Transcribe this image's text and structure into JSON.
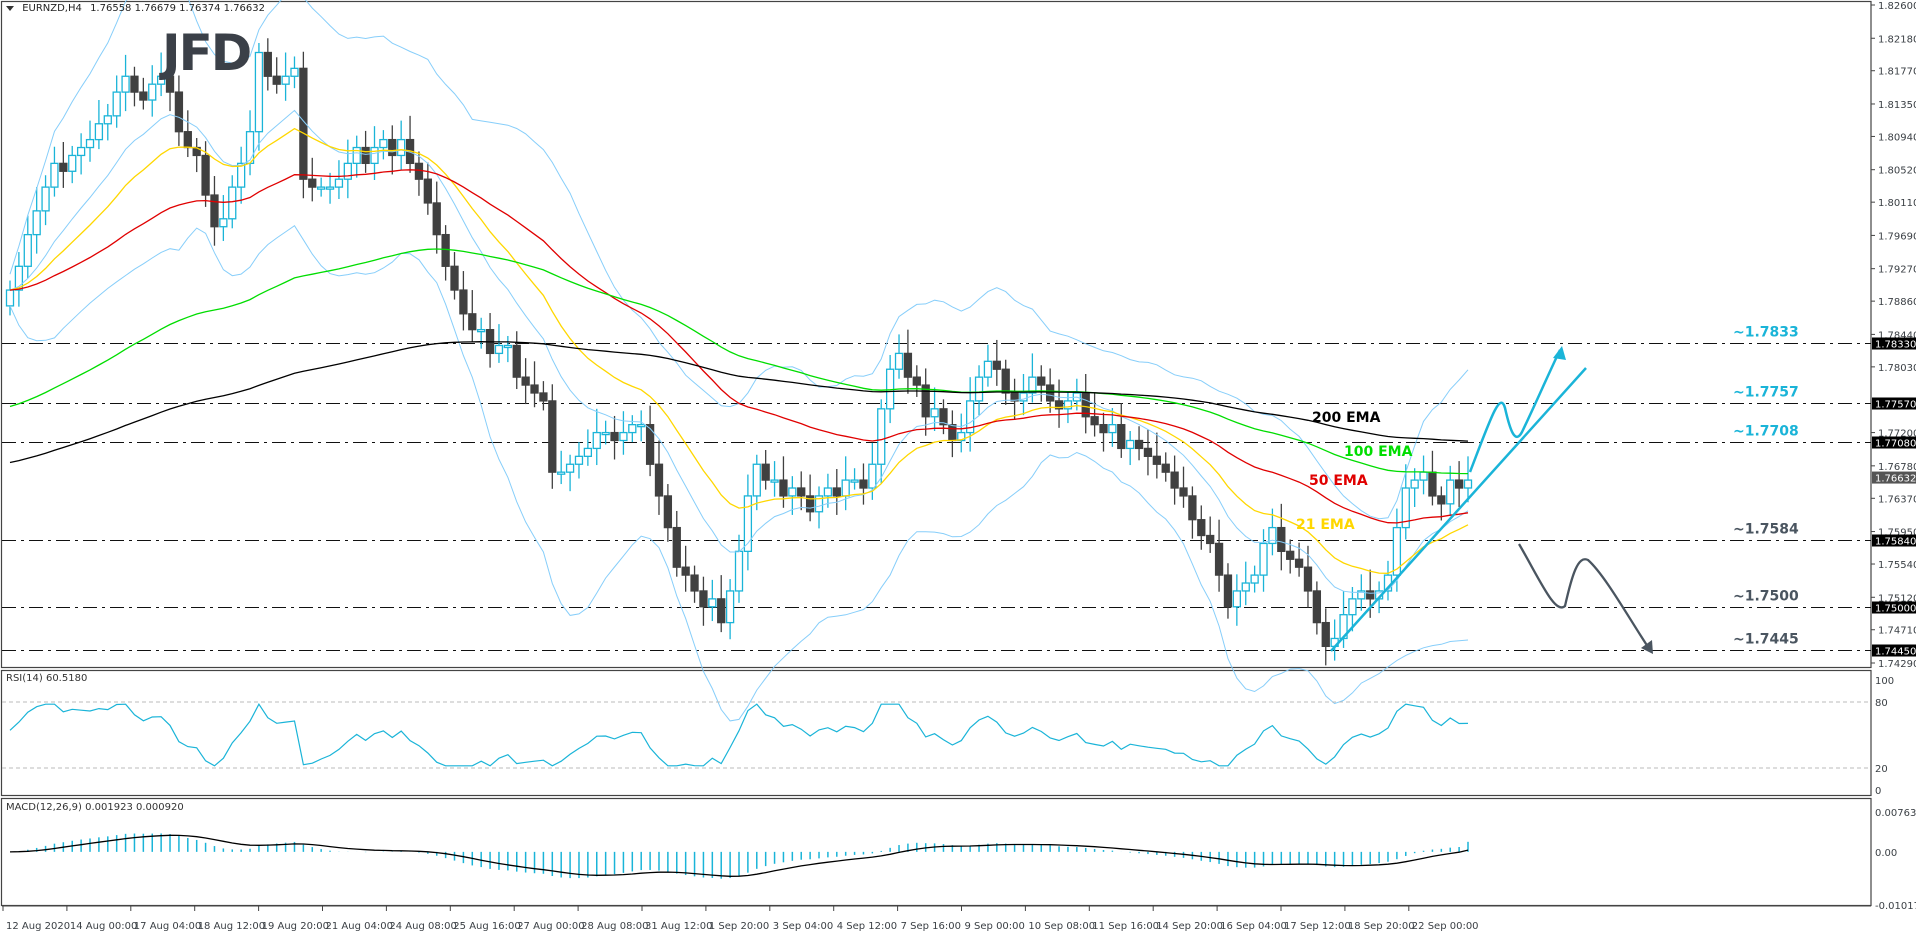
{
  "header": {
    "symbol": "EURNZD,H4",
    "ohlc": "1.76558 1.76679 1.76374 1.76632"
  },
  "logo": {
    "text": "JFD"
  },
  "panels": {
    "rsi": {
      "label": "RSI(14) 60.5180"
    },
    "macd": {
      "label": "MACD(12,26,9) 0.001923 0.000920"
    }
  },
  "colors": {
    "bull_candle": "#1ab4d8",
    "bear_candle": "#404040",
    "ema21": "#ffd700",
    "ema50": "#e00000",
    "ema100": "#00dd00",
    "ema200": "#000000",
    "bollinger": "#87cefa",
    "rsi_line": "#1ab4d8",
    "macd_hist": "#1ab4d8",
    "macd_signal": "#000000",
    "level_label_upper": "#1ab4d8",
    "level_label_lower": "#4a5560",
    "arrow_up": "#1ab4d8",
    "arrow_down": "#4a5560"
  },
  "chart_data": {
    "type": "candlestick",
    "title": "EURNZD,H4 1.76558 1.76679 1.76374 1.76632",
    "price_axis": {
      "ticks": [
        "1.82600",
        "1.82180",
        "1.81770",
        "1.81350",
        "1.80940",
        "1.80520",
        "1.80110",
        "1.79690",
        "1.79270",
        "1.78860",
        "1.78440",
        "1.78030",
        "1.77200",
        "1.76780",
        "1.76370",
        "1.75950",
        "1.75540",
        "1.75120",
        "1.74710",
        "1.74290"
      ],
      "range": [
        1.7429,
        1.826
      ],
      "current_price": "1.76632"
    },
    "time_axis": {
      "ticks": [
        "12 Aug 2020",
        "14 Aug 00:00",
        "17 Aug 04:00",
        "18 Aug 12:00",
        "19 Aug 20:00",
        "21 Aug 04:00",
        "24 Aug 08:00",
        "25 Aug 16:00",
        "27 Aug 00:00",
        "28 Aug 08:00",
        "31 Aug 12:00",
        "1 Sep 20:00",
        "3 Sep 04:00",
        "4 Sep 12:00",
        "7 Sep 16:00",
        "9 Sep 00:00",
        "10 Sep 08:00",
        "11 Sep 16:00",
        "14 Sep 20:00",
        "16 Sep 04:00",
        "17 Sep 12:00",
        "18 Sep 20:00",
        "22 Sep 00:00"
      ]
    },
    "horizontal_levels": [
      {
        "axis_label": "1.78330",
        "annotation": "~1.7833",
        "color": "#1ab4d8"
      },
      {
        "axis_label": "1.77570",
        "annotation": "~1.7757",
        "color": "#1ab4d8"
      },
      {
        "axis_label": "1.77080",
        "annotation": "~1.7708",
        "color": "#1ab4d8"
      },
      {
        "axis_label": "1.75840",
        "annotation": "~1.7584",
        "color": "#4a5560"
      },
      {
        "axis_label": "1.75000",
        "annotation": "~1.7500",
        "color": "#4a5560"
      },
      {
        "axis_label": "1.74450",
        "annotation": "~1.7445",
        "color": "#4a5560"
      }
    ],
    "moving_average_labels": [
      {
        "text": "200 EMA",
        "color": "#000000"
      },
      {
        "text": "100 EMA",
        "color": "#00dd00"
      },
      {
        "text": "50 EMA",
        "color": "#e00000"
      },
      {
        "text": "21 EMA",
        "color": "#ffd700"
      }
    ],
    "candles_close_approx": [
      1.79,
      1.793,
      1.797,
      1.8,
      1.803,
      1.806,
      1.805,
      1.807,
      1.808,
      1.809,
      1.811,
      1.812,
      1.815,
      1.817,
      1.815,
      1.814,
      1.816,
      1.817,
      1.815,
      1.81,
      1.808,
      1.807,
      1.802,
      1.798,
      1.799,
      1.803,
      1.806,
      1.81,
      1.82,
      1.817,
      1.816,
      1.817,
      1.818,
      1.804,
      1.803,
      1.803,
      1.803,
      1.804,
      1.806,
      1.808,
      1.806,
      1.808,
      1.809,
      1.807,
      1.809,
      1.806,
      1.804,
      1.801,
      1.797,
      1.793,
      1.79,
      1.787,
      1.785,
      1.785,
      1.782,
      1.783,
      1.783,
      1.779,
      1.778,
      1.777,
      1.776,
      1.767,
      1.767,
      1.768,
      1.769,
      1.77,
      1.772,
      1.772,
      1.771,
      1.772,
      1.773,
      1.773,
      1.768,
      1.764,
      1.76,
      1.755,
      1.754,
      1.752,
      1.75,
      1.751,
      1.748,
      1.752,
      1.757,
      1.764,
      1.768,
      1.766,
      1.766,
      1.764,
      1.765,
      1.764,
      1.762,
      1.764,
      1.765,
      1.764,
      1.766,
      1.766,
      1.765,
      1.768,
      1.775,
      1.78,
      1.782,
      1.779,
      1.778,
      1.774,
      1.775,
      1.773,
      1.771,
      1.772,
      1.776,
      1.779,
      1.781,
      1.78,
      1.777,
      1.776,
      1.777,
      1.779,
      1.778,
      1.776,
      1.775,
      1.776,
      1.777,
      1.774,
      1.773,
      1.772,
      1.773,
      1.77,
      1.771,
      1.77,
      1.769,
      1.768,
      1.767,
      1.765,
      1.764,
      1.761,
      1.759,
      1.758,
      1.754,
      1.75,
      1.752,
      1.753,
      1.754,
      1.758,
      1.76,
      1.757,
      1.756,
      1.755,
      1.752,
      1.748,
      1.745,
      1.746,
      1.749,
      1.751,
      1.752,
      1.751,
      1.752,
      1.754,
      1.76,
      1.765,
      1.766,
      1.767,
      1.764,
      1.763,
      1.766,
      1.765,
      1.766
    ],
    "rsi": {
      "name": "RSI(14)",
      "value": 60.518,
      "levels": [
        80,
        20
      ],
      "range": [
        0,
        100
      ],
      "axis_ticks": [
        "100",
        "80",
        "20",
        "0"
      ]
    },
    "macd": {
      "name": "MACD(12,26,9)",
      "main": 0.001923,
      "signal": 0.00092,
      "axis_ticks": [
        "0.007632",
        "0.00",
        "-0.010175"
      ],
      "range": [
        -0.010175,
        0.007632
      ]
    },
    "scenarios": [
      {
        "direction": "up",
        "target": "~1.7833",
        "color": "#1ab4d8"
      },
      {
        "direction": "down",
        "target": "~1.7445",
        "color": "#4a5560"
      }
    ],
    "trendline": {
      "color": "#1ab4d8",
      "description": "rising support from 17 Sep low"
    }
  }
}
